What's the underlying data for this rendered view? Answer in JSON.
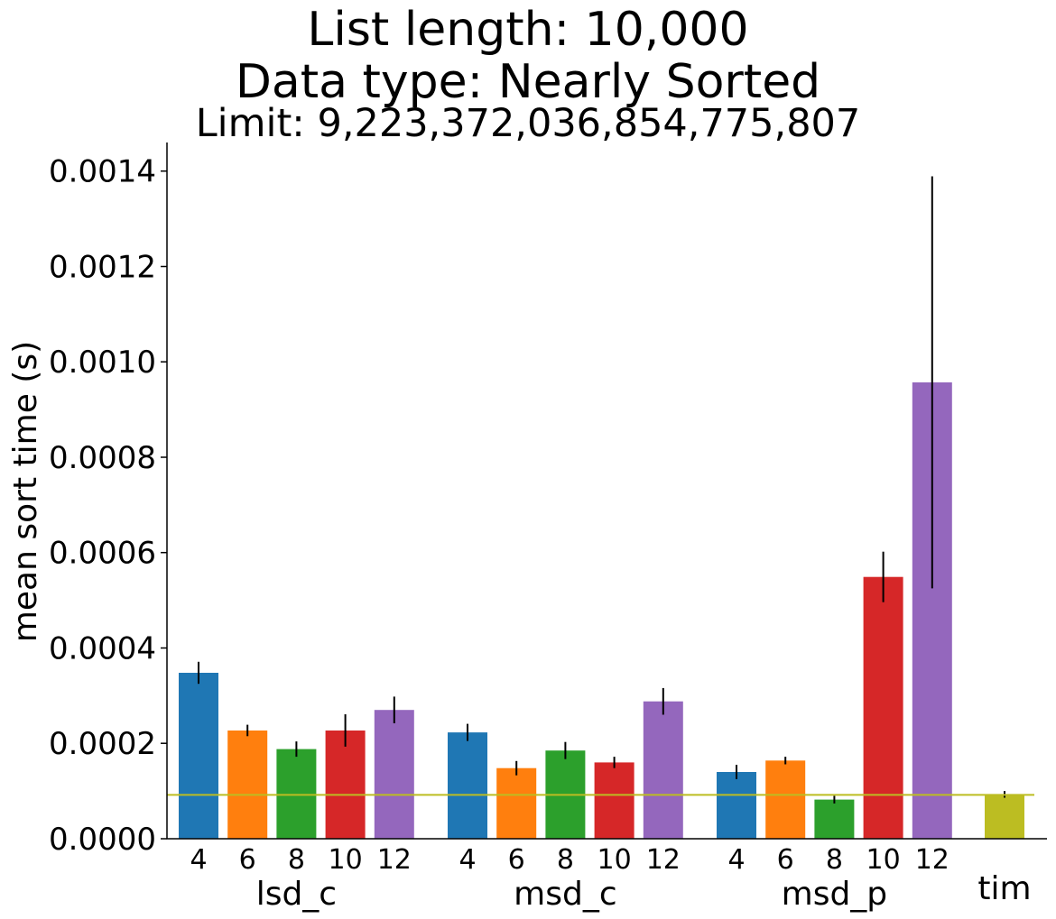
{
  "chart_data": {
    "type": "bar",
    "title_lines": [
      "List length: 10,000",
      "Data type: Nearly Sorted",
      "Limit: 9,223,372,036,854,775,807"
    ],
    "ylabel": "mean sort time (s)",
    "xlabel": "",
    "ylim": [
      0,
      0.00146
    ],
    "yticks": [
      "0.0000",
      "0.0002",
      "0.0004",
      "0.0006",
      "0.0008",
      "0.0010",
      "0.0012",
      "0.0014"
    ],
    "ytick_values": [
      0,
      0.0002,
      0.0004,
      0.0006,
      0.0008,
      0.001,
      0.0012,
      0.0014
    ],
    "grid": false,
    "baseline": {
      "value": 9.2e-05,
      "color": "#bcbd22"
    },
    "groups": [
      {
        "name": "lsd_c",
        "bars": [
          {
            "label": "4",
            "value": 0.000348,
            "error": 2.3e-05,
            "color": "#1f77b4"
          },
          {
            "label": "6",
            "value": 0.000227,
            "error": 1.2e-05,
            "color": "#ff7f0e"
          },
          {
            "label": "8",
            "value": 0.000188,
            "error": 1.6e-05,
            "color": "#2ca02c"
          },
          {
            "label": "10",
            "value": 0.000227,
            "error": 3.4e-05,
            "color": "#d62728"
          },
          {
            "label": "12",
            "value": 0.00027,
            "error": 2.8e-05,
            "color": "#9467bd"
          }
        ]
      },
      {
        "name": "msd_c",
        "bars": [
          {
            "label": "4",
            "value": 0.000223,
            "error": 1.8e-05,
            "color": "#1f77b4"
          },
          {
            "label": "6",
            "value": 0.000148,
            "error": 1.5e-05,
            "color": "#ff7f0e"
          },
          {
            "label": "8",
            "value": 0.000185,
            "error": 1.8e-05,
            "color": "#2ca02c"
          },
          {
            "label": "10",
            "value": 0.00016,
            "error": 1.2e-05,
            "color": "#d62728"
          },
          {
            "label": "12",
            "value": 0.000288,
            "error": 2.8e-05,
            "color": "#9467bd"
          }
        ]
      },
      {
        "name": "msd_p",
        "bars": [
          {
            "label": "4",
            "value": 0.00014,
            "error": 1.5e-05,
            "color": "#1f77b4"
          },
          {
            "label": "6",
            "value": 0.000164,
            "error": 8e-06,
            "color": "#ff7f0e"
          },
          {
            "label": "8",
            "value": 8.2e-05,
            "error": 8e-06,
            "color": "#2ca02c"
          },
          {
            "label": "10",
            "value": 0.000549,
            "error": 5.3e-05,
            "color": "#d62728"
          },
          {
            "label": "12",
            "value": 0.000957,
            "error": 0.000432,
            "color": "#9467bd"
          }
        ]
      },
      {
        "name": "tim",
        "bars": [
          {
            "label": "",
            "value": 9.3e-05,
            "error": 7e-06,
            "color": "#bcbd22"
          }
        ]
      }
    ]
  }
}
